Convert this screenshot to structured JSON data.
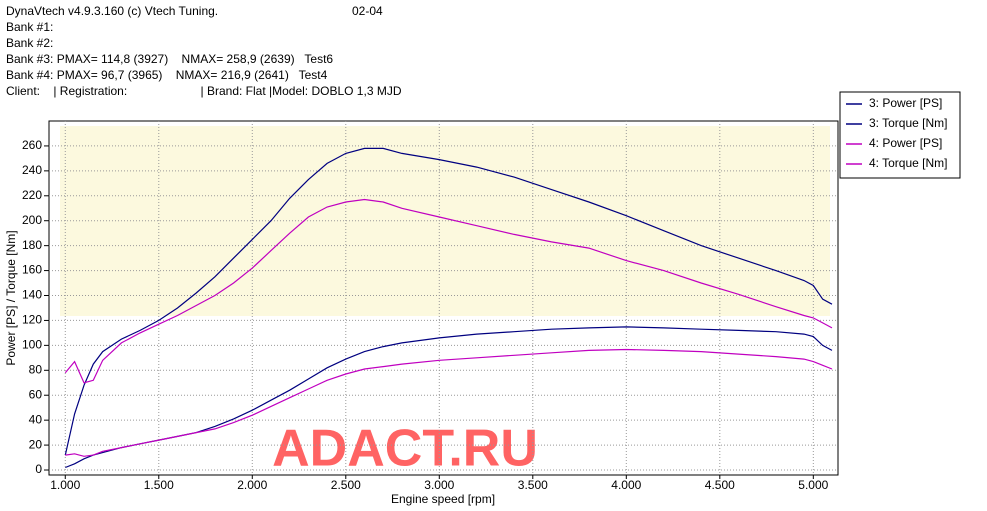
{
  "header": {
    "app": "DynaVtech v4.9.3.160 (c) Vtech Tuning.",
    "code": "02-04",
    "lines": [
      "Bank #1:",
      "Bank #2:",
      "Bank #3: PMAX= 114,8 (3927)    NMAX= 258,9 (2639)   Test6",
      "Bank #4: PMAX= 96,7 (3965)    NMAX= 216,9 (2641)   Test4",
      "Client:    | Registration:                      | Brand: Flat |Model: DOBLO 1,3 MJD"
    ]
  },
  "chart_data": {
    "type": "line",
    "watermark": "ADACT.RU",
    "xlabel": "Engine speed [rpm]",
    "ylabel": "Power [PS] / Torque [Nm]",
    "x": [
      1000,
      1050,
      1100,
      1150,
      1200,
      1300,
      1400,
      1500,
      1600,
      1700,
      1800,
      1900,
      2000,
      2100,
      2200,
      2300,
      2400,
      2500,
      2600,
      2700,
      2800,
      3000,
      3200,
      3400,
      3600,
      3800,
      4000,
      4200,
      4400,
      4600,
      4800,
      4950,
      5000,
      5050,
      5100
    ],
    "series": [
      {
        "name": "3: Power [PS]",
        "color": "#000080",
        "values": [
          2,
          5,
          9,
          12,
          14,
          18,
          21,
          24,
          27,
          30,
          35,
          41,
          48,
          56,
          64,
          73,
          82,
          89,
          95,
          99,
          102,
          106,
          109,
          111,
          113,
          114,
          114.8,
          114,
          113,
          112,
          111,
          109,
          107,
          100,
          96
        ]
      },
      {
        "name": "3: Torque [Nm]",
        "color": "#000080",
        "values": [
          12,
          45,
          68,
          85,
          95,
          105,
          112,
          120,
          130,
          142,
          155,
          170,
          185,
          200,
          218,
          233,
          246,
          254,
          258,
          258,
          254,
          249,
          243,
          235,
          225,
          215,
          204,
          192,
          180,
          170,
          160,
          152,
          148,
          137,
          133
        ]
      },
      {
        "name": "4: Power [PS]",
        "color": "#c000c0",
        "values": [
          12,
          13,
          11,
          12,
          15,
          18,
          21,
          24,
          27,
          30,
          33,
          38,
          44,
          51,
          58,
          65,
          72,
          77,
          81,
          83,
          85,
          88,
          90,
          92,
          94,
          96,
          96.7,
          96,
          95,
          93,
          91,
          89,
          87,
          84,
          81
        ]
      },
      {
        "name": "4: Torque [Nm]",
        "color": "#c000c0",
        "values": [
          78,
          87,
          70,
          72,
          88,
          102,
          110,
          117,
          124,
          132,
          140,
          150,
          162,
          176,
          190,
          203,
          211,
          215,
          217,
          215,
          210,
          203,
          196,
          189,
          183,
          178,
          168,
          160,
          150,
          141,
          131,
          124,
          122,
          118,
          114
        ]
      }
    ],
    "xlim": [
      913,
      5132
    ],
    "ylim": [
      -4,
      280
    ],
    "xticks": [
      {
        "value": 1000,
        "label": "1.000"
      },
      {
        "value": 1500,
        "label": "1.500"
      },
      {
        "value": 2000,
        "label": "2.000"
      },
      {
        "value": 2500,
        "label": "2.500"
      },
      {
        "value": 3000,
        "label": "3.000"
      },
      {
        "value": 3500,
        "label": "3.500"
      },
      {
        "value": 4000,
        "label": "4.000"
      },
      {
        "value": 4500,
        "label": "4.500"
      },
      {
        "value": 5000,
        "label": "5.000"
      }
    ],
    "yticks": [
      0,
      20,
      40,
      60,
      80,
      100,
      120,
      140,
      160,
      180,
      200,
      220,
      240,
      260
    ],
    "grid": true,
    "legend": "right"
  }
}
